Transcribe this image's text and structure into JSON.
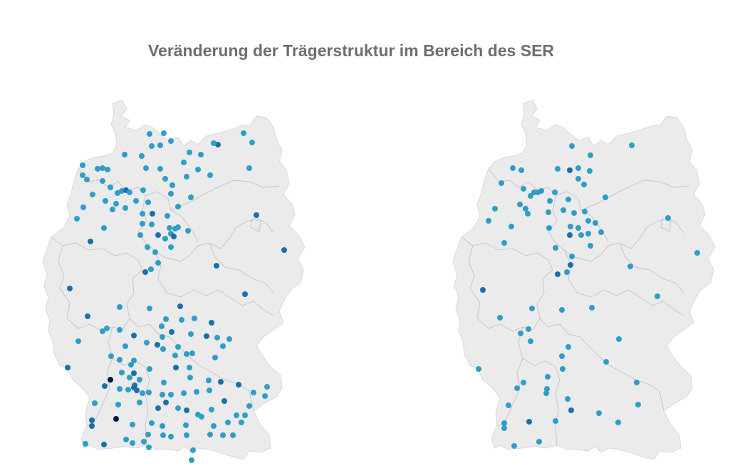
{
  "title": "Veränderung der Trägerstruktur im Bereich des SER",
  "colors": {
    "dot_light": "#2e9ec8",
    "dot_mid": "#1a6fa8",
    "dot_dark": "#0a3a72",
    "dot_black": "#051a33",
    "land": "#ebebeb",
    "state_border": "#c6c6c6"
  },
  "maps": [
    {
      "name": "germany-map-left",
      "points": [
        [
          210,
          188,
          "l"
        ],
        [
          230,
          187,
          "l"
        ],
        [
          213,
          205,
          "l"
        ],
        [
          225,
          204,
          "l"
        ],
        [
          240,
          198,
          "l"
        ],
        [
          306,
          203,
          "m"
        ],
        [
          342,
          187,
          "l"
        ],
        [
          354,
          200,
          "l"
        ],
        [
          175,
          217,
          "l"
        ],
        [
          199,
          219,
          "l"
        ],
        [
          266,
          214,
          "l"
        ],
        [
          282,
          217,
          "l"
        ],
        [
          300,
          201,
          "l"
        ],
        [
          350,
          236,
          "l"
        ],
        [
          116,
          232,
          "l"
        ],
        [
          137,
          237,
          "l"
        ],
        [
          144,
          236,
          "l"
        ],
        [
          151,
          238,
          "l"
        ],
        [
          116,
          246,
          "l"
        ],
        [
          122,
          252,
          "l"
        ],
        [
          144,
          254,
          "l"
        ],
        [
          155,
          263,
          "l"
        ],
        [
          205,
          236,
          "l"
        ],
        [
          225,
          237,
          "l"
        ],
        [
          232,
          251,
          "l"
        ],
        [
          242,
          260,
          "l"
        ],
        [
          258,
          228,
          "l"
        ],
        [
          262,
          248,
          "l"
        ],
        [
          278,
          238,
          "l"
        ],
        [
          295,
          246,
          "l"
        ],
        [
          165,
          271,
          "l"
        ],
        [
          171,
          268,
          "l"
        ],
        [
          177,
          267,
          "m"
        ],
        [
          182,
          270,
          "l"
        ],
        [
          201,
          267,
          "l"
        ],
        [
          130,
          273,
          "l"
        ],
        [
          148,
          282,
          "l"
        ],
        [
          163,
          286,
          "l"
        ],
        [
          176,
          292,
          "l"
        ],
        [
          158,
          294,
          "l"
        ],
        [
          117,
          291,
          "l"
        ],
        [
          108,
          307,
          "l"
        ],
        [
          191,
          282,
          "l"
        ],
        [
          208,
          284,
          "l"
        ],
        [
          240,
          272,
          "l"
        ],
        [
          250,
          290,
          "l"
        ],
        [
          268,
          277,
          "l"
        ],
        [
          200,
          300,
          "l"
        ],
        [
          214,
          300,
          "m"
        ],
        [
          235,
          303,
          "l"
        ],
        [
          200,
          314,
          "l"
        ],
        [
          146,
          320,
          "l"
        ],
        [
          360,
          302,
          "m"
        ],
        [
          213,
          315,
          "l"
        ],
        [
          238,
          320,
          "l"
        ],
        [
          246,
          321,
          "l"
        ],
        [
          250,
          319,
          "l"
        ],
        [
          264,
          324,
          "l"
        ],
        [
          197,
          330,
          "l"
        ],
        [
          222,
          330,
          "m"
        ],
        [
          240,
          328,
          "l"
        ],
        [
          244,
          332,
          "m"
        ],
        [
          232,
          335,
          "l"
        ],
        [
          127,
          339,
          "m"
        ],
        [
          207,
          347,
          "l"
        ],
        [
          218,
          354,
          "l"
        ],
        [
          240,
          347,
          "l"
        ],
        [
          399,
          351,
          "m"
        ],
        [
          222,
          369,
          "l"
        ],
        [
          304,
          373,
          "m"
        ],
        [
          212,
          378,
          "l"
        ],
        [
          204,
          382,
          "m"
        ],
        [
          98,
          405,
          "m"
        ],
        [
          344,
          413,
          "m"
        ],
        [
          168,
          431,
          "l"
        ],
        [
          210,
          433,
          "l"
        ],
        [
          253,
          430,
          "m"
        ],
        [
          123,
          444,
          "m"
        ],
        [
          233,
          448,
          "l"
        ],
        [
          255,
          449,
          "l"
        ],
        [
          273,
          447,
          "l"
        ],
        [
          297,
          453,
          "m"
        ],
        [
          144,
          465,
          "l"
        ],
        [
          150,
          461,
          "l"
        ],
        [
          168,
          463,
          "l"
        ],
        [
          188,
          471,
          "m"
        ],
        [
          227,
          458,
          "l"
        ],
        [
          241,
          466,
          "m"
        ],
        [
          228,
          473,
          "l"
        ],
        [
          268,
          469,
          "l"
        ],
        [
          290,
          472,
          "m"
        ],
        [
          305,
          474,
          "l"
        ],
        [
          110,
          479,
          "l"
        ],
        [
          176,
          486,
          "l"
        ],
        [
          206,
          481,
          "l"
        ],
        [
          221,
          484,
          "m"
        ],
        [
          229,
          490,
          "l"
        ],
        [
          250,
          487,
          "l"
        ],
        [
          156,
          500,
          "l"
        ],
        [
          168,
          505,
          "l"
        ],
        [
          188,
          506,
          "l"
        ],
        [
          246,
          499,
          "l"
        ],
        [
          262,
          497,
          "l"
        ],
        [
          270,
          496,
          "l"
        ],
        [
          313,
          486,
          "l"
        ],
        [
          322,
          476,
          "l"
        ],
        [
          95,
          516,
          "m"
        ],
        [
          184,
          512,
          "l"
        ],
        [
          210,
          518,
          "l"
        ],
        [
          266,
          516,
          "l"
        ],
        [
          302,
          502,
          "l"
        ],
        [
          247,
          516,
          "m"
        ],
        [
          171,
          523,
          "l"
        ],
        [
          182,
          530,
          "l"
        ],
        [
          155,
          533,
          "k"
        ],
        [
          188,
          524,
          "m"
        ],
        [
          196,
          533,
          "l"
        ],
        [
          230,
          537,
          "l"
        ],
        [
          267,
          530,
          "l"
        ],
        [
          293,
          534,
          "l"
        ],
        [
          310,
          536,
          "m"
        ],
        [
          147,
          542,
          "m"
        ],
        [
          168,
          546,
          "l"
        ],
        [
          180,
          547,
          "l"
        ],
        [
          188,
          544,
          "m"
        ],
        [
          192,
          548,
          "m"
        ],
        [
          189,
          541,
          "m"
        ],
        [
          200,
          552,
          "l"
        ],
        [
          209,
          551,
          "l"
        ],
        [
          228,
          554,
          "l"
        ],
        [
          240,
          554,
          "l"
        ],
        [
          258,
          552,
          "l"
        ],
        [
          276,
          550,
          "l"
        ],
        [
          294,
          548,
          "l"
        ],
        [
          315,
          563,
          "m"
        ],
        [
          335,
          540,
          "m"
        ],
        [
          356,
          551,
          "l"
        ],
        [
          375,
          543,
          "l"
        ],
        [
          372,
          556,
          "l"
        ],
        [
          133,
          566,
          "l"
        ],
        [
          166,
          568,
          "l"
        ],
        [
          196,
          565,
          "l"
        ],
        [
          222,
          573,
          "m"
        ],
        [
          233,
          565,
          "m"
        ],
        [
          250,
          573,
          "l"
        ],
        [
          262,
          576,
          "m"
        ],
        [
          283,
          585,
          "l"
        ],
        [
          297,
          575,
          "l"
        ],
        [
          332,
          583,
          "l"
        ],
        [
          344,
          583,
          "l"
        ],
        [
          350,
          570,
          "l"
        ],
        [
          129,
          590,
          "m"
        ],
        [
          163,
          588,
          "k"
        ],
        [
          129,
          598,
          "m"
        ],
        [
          186,
          596,
          "l"
        ],
        [
          213,
          594,
          "l"
        ],
        [
          228,
          598,
          "l"
        ],
        [
          261,
          597,
          "l"
        ],
        [
          278,
          582,
          "l"
        ],
        [
          300,
          598,
          "l"
        ],
        [
          320,
          593,
          "l"
        ],
        [
          339,
          593,
          "l"
        ],
        [
          208,
          610,
          "l"
        ],
        [
          229,
          611,
          "l"
        ],
        [
          240,
          613,
          "l"
        ],
        [
          262,
          611,
          "l"
        ],
        [
          295,
          610,
          "l"
        ],
        [
          313,
          611,
          "l"
        ],
        [
          327,
          611,
          "l"
        ],
        [
          120,
          623,
          "l"
        ],
        [
          146,
          624,
          "m"
        ],
        [
          177,
          617,
          "l"
        ],
        [
          186,
          622,
          "l"
        ],
        [
          202,
          620,
          "l"
        ],
        [
          209,
          628,
          "l"
        ],
        [
          271,
          632,
          "l"
        ],
        [
          269,
          646,
          "l"
        ]
      ]
    },
    {
      "name": "germany-map-right",
      "points": [
        [
          803,
          205,
          "l"
        ],
        [
          887,
          204,
          "l"
        ],
        [
          829,
          218,
          "l"
        ],
        [
          720,
          236,
          "l"
        ],
        [
          732,
          239,
          "l"
        ],
        [
          783,
          237,
          "l"
        ],
        [
          800,
          239,
          "m"
        ],
        [
          812,
          236,
          "l"
        ],
        [
          828,
          240,
          "l"
        ],
        [
          812,
          251,
          "l"
        ],
        [
          820,
          259,
          "l"
        ],
        [
          704,
          257,
          "l"
        ],
        [
          735,
          265,
          "l"
        ],
        [
          750,
          270,
          "l"
        ],
        [
          755,
          270,
          "l"
        ],
        [
          760,
          268,
          "l"
        ],
        [
          745,
          275,
          "l"
        ],
        [
          772,
          282,
          "l"
        ],
        [
          779,
          270,
          "l"
        ],
        [
          798,
          280,
          "l"
        ],
        [
          850,
          277,
          "l"
        ],
        [
          730,
          287,
          "l"
        ],
        [
          738,
          293,
          "l"
        ],
        [
          741,
          300,
          "l"
        ],
        [
          695,
          293,
          "l"
        ],
        [
          686,
          310,
          "l"
        ],
        [
          770,
          298,
          "l"
        ],
        [
          791,
          295,
          "l"
        ],
        [
          806,
          299,
          "l"
        ],
        [
          821,
          297,
          "l"
        ],
        [
          718,
          318,
          "l"
        ],
        [
          771,
          320,
          "l"
        ],
        [
          801,
          318,
          "l"
        ],
        [
          812,
          320,
          "l"
        ],
        [
          826,
          310,
          "l"
        ],
        [
          836,
          313,
          "l"
        ],
        [
          800,
          330,
          "m"
        ],
        [
          816,
          330,
          "l"
        ],
        [
          826,
          328,
          "l"
        ],
        [
          844,
          326,
          "l"
        ],
        [
          708,
          341,
          "l"
        ],
        [
          780,
          348,
          "l"
        ],
        [
          829,
          345,
          "l"
        ],
        [
          938,
          306,
          "l"
        ],
        [
          979,
          355,
          "l"
        ],
        [
          803,
          360,
          "l"
        ],
        [
          801,
          372,
          "m"
        ],
        [
          885,
          374,
          "l"
        ],
        [
          783,
          385,
          "m"
        ],
        [
          796,
          382,
          "l"
        ],
        [
          678,
          407,
          "m"
        ],
        [
          923,
          416,
          "l"
        ],
        [
          747,
          433,
          "l"
        ],
        [
          789,
          435,
          "l"
        ],
        [
          831,
          432,
          "l"
        ],
        [
          702,
          446,
          "l"
        ],
        [
          742,
          462,
          "l"
        ],
        [
          731,
          468,
          "l"
        ],
        [
          745,
          479,
          "l"
        ],
        [
          869,
          476,
          "l"
        ],
        [
          798,
          487,
          "l"
        ],
        [
          789,
          500,
          "l"
        ],
        [
          851,
          508,
          "l"
        ],
        [
          672,
          518,
          "l"
        ],
        [
          790,
          518,
          "l"
        ],
        [
          769,
          529,
          "l"
        ],
        [
          735,
          537,
          "l"
        ],
        [
          768,
          546,
          "l"
        ],
        [
          767,
          552,
          "l"
        ],
        [
          726,
          545,
          "l"
        ],
        [
          894,
          537,
          "l"
        ],
        [
          797,
          560,
          "l"
        ],
        [
          802,
          576,
          "m"
        ],
        [
          714,
          569,
          "l"
        ],
        [
          841,
          580,
          "l"
        ],
        [
          896,
          568,
          "l"
        ],
        [
          743,
          592,
          "m"
        ],
        [
          708,
          594,
          "l"
        ],
        [
          708,
          601,
          "l"
        ],
        [
          780,
          591,
          "l"
        ],
        [
          868,
          593,
          "l"
        ],
        [
          722,
          626,
          "l"
        ],
        [
          757,
          620,
          "l"
        ]
      ]
    }
  ]
}
